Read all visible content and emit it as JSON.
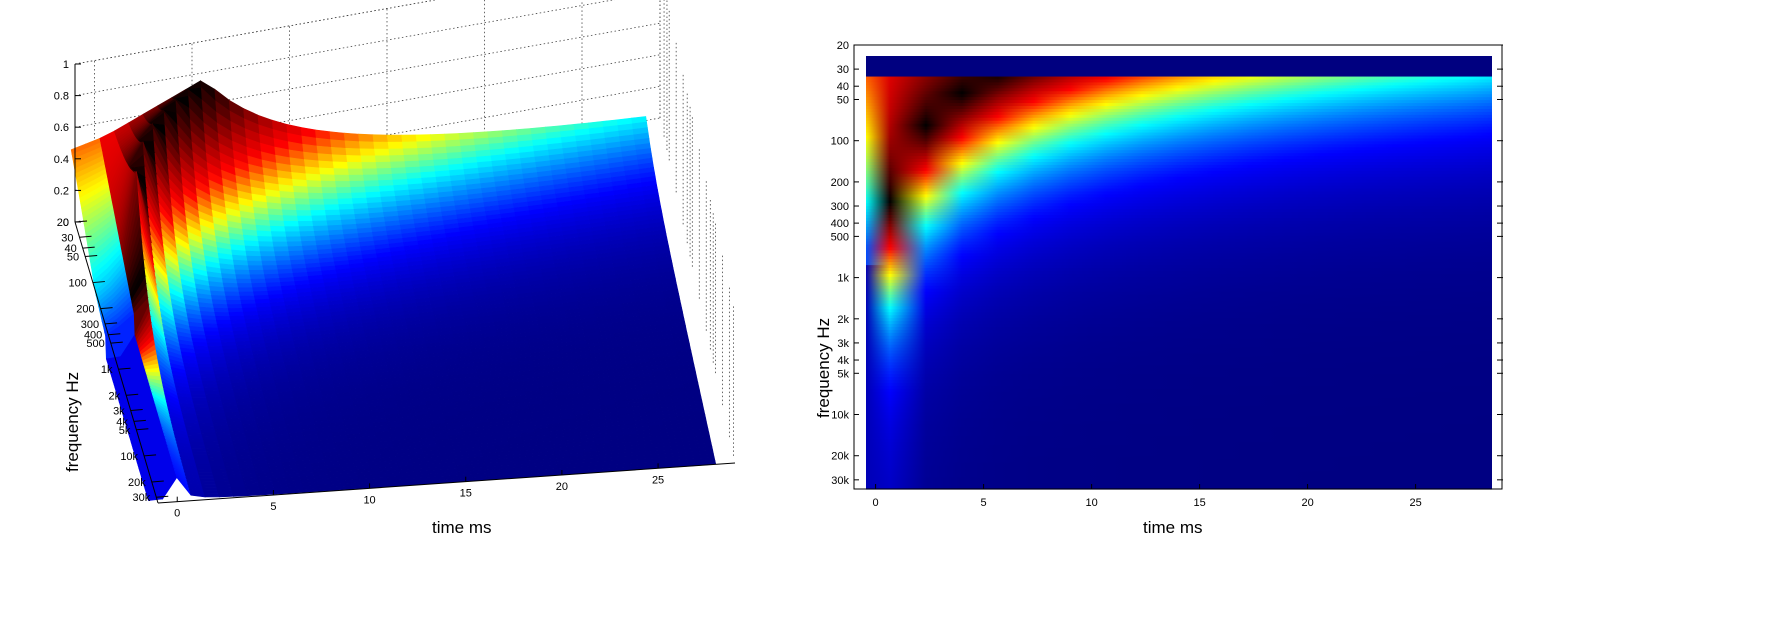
{
  "chart_data": [
    {
      "type": "surface",
      "view": "3d",
      "xlabel": "time   ms",
      "ylabel": "frequency   Hz",
      "zlim": [
        0,
        1
      ],
      "z_ticks": [
        "0",
        "0.2",
        "0.4",
        "0.6",
        "0.8",
        "1"
      ],
      "z_tick_values": [
        0,
        0.2,
        0.4,
        0.6,
        0.8,
        1
      ],
      "x_ticks": [
        "0",
        "5",
        "10",
        "15",
        "20",
        "25"
      ],
      "x_tick_values": [
        0,
        5,
        10,
        15,
        20,
        25
      ],
      "xlim": [
        -1,
        29
      ],
      "y_ticks": [
        "20",
        "30",
        "40",
        "50",
        "100",
        "200",
        "300",
        "400",
        "500",
        "1k",
        "2k",
        "3k",
        "4k",
        "5k",
        "10k",
        "20k",
        "30k"
      ],
      "y_tick_values": [
        20,
        30,
        40,
        50,
        100,
        200,
        300,
        400,
        500,
        1000,
        2000,
        3000,
        4000,
        5000,
        10000,
        20000,
        30000
      ],
      "ylim": [
        20,
        35000
      ],
      "y_scale": "log",
      "colormap": "hot-black-jet",
      "grid": true
    },
    {
      "type": "heatmap",
      "view": "2d",
      "xlabel": "time   ms",
      "ylabel": "frequency   Hz",
      "x_ticks": [
        "0",
        "5",
        "10",
        "15",
        "20",
        "25"
      ],
      "x_tick_values": [
        0,
        5,
        10,
        15,
        20,
        25
      ],
      "xlim": [
        -1,
        29
      ],
      "y_ticks": [
        "20",
        "30",
        "40",
        "50",
        "100",
        "200",
        "300",
        "400",
        "500",
        "1k",
        "2k",
        "3k",
        "4k",
        "5k",
        "10k",
        "20k",
        "30k"
      ],
      "y_tick_values": [
        20,
        30,
        40,
        50,
        100,
        200,
        300,
        400,
        500,
        1000,
        2000,
        3000,
        4000,
        5000,
        10000,
        20000,
        30000
      ],
      "ylim": [
        20,
        35000
      ],
      "y_scale": "log",
      "colormap": "hot-black-jet",
      "grid": true
    }
  ],
  "colors": {
    "background": "#ffffff",
    "axis": "#000000",
    "deep_blue": "#000080",
    "black_ridge": "#000000",
    "red": "#ff0000"
  }
}
